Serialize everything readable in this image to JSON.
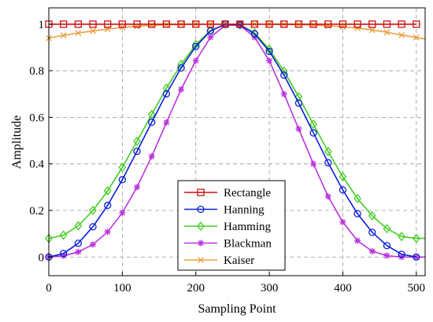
{
  "chart_data": {
    "type": "line",
    "title": "",
    "xlabel": "Sampling Point",
    "ylabel": "Amplitude",
    "xlim": [
      0,
      512
    ],
    "ylim": [
      -0.08,
      1.07
    ],
    "x_ticks": [
      0,
      100,
      200,
      300,
      400,
      500
    ],
    "x_tick_labels": [
      "0",
      "100",
      "200",
      "300",
      "400",
      "500"
    ],
    "y_ticks": [
      0,
      0.2,
      0.4,
      0.6,
      0.8,
      1
    ],
    "y_tick_labels": [
      "0",
      "0.2",
      "0.4",
      "0.6",
      "0.8",
      "1"
    ],
    "grid": true,
    "legend_position": "bottom-center",
    "series": [
      {
        "name": "Rectangle",
        "color": "#cc1111",
        "marker": "square",
        "x": [
          0,
          20,
          40,
          60,
          80,
          100,
          120,
          140,
          160,
          180,
          200,
          220,
          240,
          260,
          280,
          300,
          320,
          340,
          360,
          380,
          400,
          420,
          440,
          460,
          480,
          500
        ],
        "y": [
          1,
          1,
          1,
          1,
          1,
          1,
          1,
          1,
          1,
          1,
          1,
          1,
          1,
          1,
          1,
          1,
          1,
          1,
          1,
          1,
          1,
          1,
          1,
          1,
          1,
          1
        ]
      },
      {
        "name": "Hanning",
        "color": "#0a1fd8",
        "marker": "circle",
        "x": [
          0,
          20,
          40,
          60,
          80,
          100,
          120,
          140,
          160,
          180,
          200,
          220,
          240,
          260,
          280,
          300,
          320,
          340,
          360,
          380,
          400,
          420,
          440,
          460,
          480,
          500
        ],
        "y": [
          0.0,
          0.015,
          0.059,
          0.13,
          0.222,
          0.332,
          0.454,
          0.579,
          0.701,
          0.812,
          0.904,
          0.971,
          1.0,
          0.997,
          0.958,
          0.883,
          0.781,
          0.661,
          0.533,
          0.405,
          0.288,
          0.186,
          0.106,
          0.049,
          0.012,
          0.0
        ]
      },
      {
        "name": "Hamming",
        "color": "#44cc22",
        "marker": "diamond",
        "x": [
          0,
          20,
          40,
          60,
          80,
          100,
          120,
          140,
          160,
          180,
          200,
          220,
          240,
          260,
          280,
          300,
          320,
          340,
          360,
          380,
          400,
          420,
          440,
          460,
          480,
          500,
          512
        ],
        "y": [
          0.08,
          0.094,
          0.134,
          0.2,
          0.284,
          0.385,
          0.497,
          0.612,
          0.725,
          0.827,
          0.912,
          0.973,
          1.0,
          0.997,
          0.962,
          0.892,
          0.798,
          0.688,
          0.57,
          0.453,
          0.345,
          0.251,
          0.177,
          0.122,
          0.088,
          0.08,
          0.08
        ]
      },
      {
        "name": "Blackman",
        "color": "#bb33dd",
        "marker": "star",
        "x": [
          0,
          20,
          40,
          60,
          80,
          100,
          120,
          140,
          160,
          180,
          200,
          220,
          240,
          260,
          280,
          300,
          320,
          340,
          360,
          380,
          400,
          420,
          440,
          460,
          480,
          500,
          512
        ],
        "y": [
          0.0,
          0.005,
          0.022,
          0.054,
          0.108,
          0.19,
          0.3,
          0.432,
          0.578,
          0.72,
          0.843,
          0.944,
          0.995,
          0.995,
          0.944,
          0.843,
          0.7,
          0.55,
          0.4,
          0.26,
          0.15,
          0.07,
          0.025,
          0.006,
          0.0,
          0.0,
          0.0
        ]
      },
      {
        "name": "Kaiser",
        "color": "#e8a040",
        "marker": "x",
        "x": [
          0,
          20,
          40,
          60,
          80,
          100,
          120,
          140,
          160,
          180,
          200,
          220,
          240,
          260,
          280,
          300,
          320,
          340,
          360,
          380,
          400,
          420,
          440,
          460,
          480,
          500,
          512
        ],
        "y": [
          0.94,
          0.952,
          0.962,
          0.971,
          0.979,
          0.986,
          0.991,
          0.995,
          0.997,
          0.999,
          1.0,
          1.0,
          1.0,
          1.0,
          1.0,
          1.0,
          0.999,
          0.998,
          0.996,
          0.993,
          0.989,
          0.983,
          0.975,
          0.965,
          0.953,
          0.943,
          0.936
        ]
      }
    ]
  }
}
